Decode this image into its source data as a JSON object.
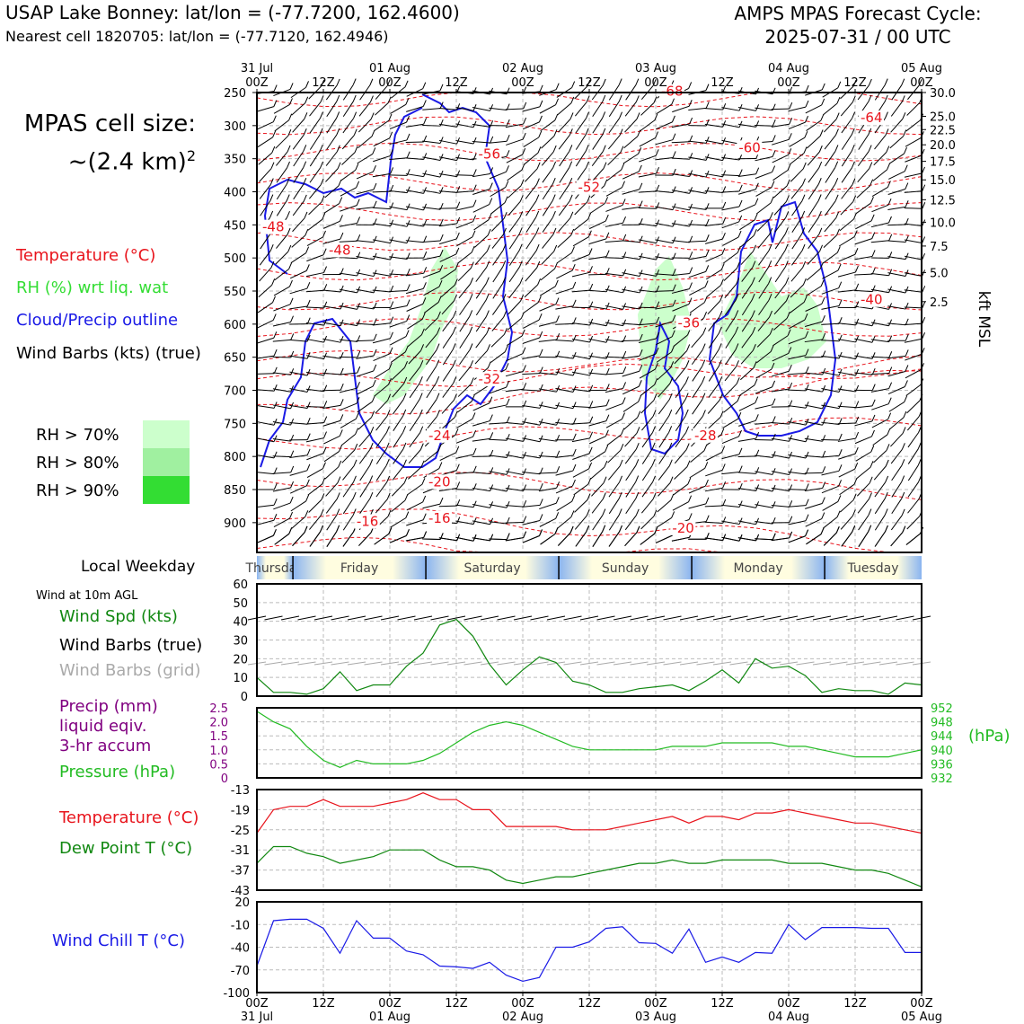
{
  "header": {
    "title_left": "USAP Lake Bonney: lat/lon = (-77.7200, 162.4600)",
    "subtitle_left": "Nearest cell 1820705: lat/lon = (-77.7120, 162.4946)",
    "title_right_line1": "AMPS MPAS Forecast Cycle:",
    "title_right_line2": "2025-07-31 / 00 UTC",
    "cell_size_line1": "MPAS cell size:",
    "cell_size_line2": "~(2.4 km)",
    "cell_size_sup": "2"
  },
  "legend_upper": {
    "temperature": "Temperature (°C)",
    "rh": "RH (%) wrt liq. wat",
    "cloud": "Cloud/Precip outline",
    "barbs": "Wind Barbs (kts) (true)",
    "rh70": "RH > 70%",
    "rh80": "RH > 80%",
    "rh90": "RH > 90%"
  },
  "legend_lower": {
    "weekday_label": "Local Weekday",
    "wind_note": "Wind at 10m AGL",
    "wind_spd": "Wind Spd (kts)",
    "barbs_true": "Wind Barbs (true)",
    "barbs_grid": "Wind Barbs (grid)",
    "precip1": "Precip (mm)",
    "precip2": "liquid eqiv.",
    "precip3": "3-hr accum",
    "pressure": "Pressure (hPa)",
    "hpa_unit": "(hPa)",
    "temp": "Temperature (°C)",
    "dew": "Dew Point T (°C)",
    "chill": "Wind Chill T (°C)"
  },
  "colors": {
    "temperature": "#e8141c",
    "rh": "#33dd33",
    "cloud": "#1a1ae6",
    "pressure": "#22bb22",
    "dew": "#118811",
    "precip": "#800080",
    "chill": "#1a1ae6",
    "grid_barbs": "#aaaaaa",
    "rh70": "#ccffcc",
    "rh80": "#a0f0a0",
    "rh90": "#33dd33"
  },
  "chart_data": {
    "type": "line",
    "time_ticks": [
      {
        "hour": 0,
        "top": "31 Jul",
        "bot": "00Z"
      },
      {
        "hour": 12,
        "top": "",
        "bot": "12Z"
      },
      {
        "hour": 24,
        "top": "01 Aug",
        "bot": "00Z"
      },
      {
        "hour": 36,
        "top": "",
        "bot": "12Z"
      },
      {
        "hour": 48,
        "top": "02 Aug",
        "bot": "00Z"
      },
      {
        "hour": 60,
        "top": "",
        "bot": "12Z"
      },
      {
        "hour": 72,
        "top": "03 Aug",
        "bot": "00Z"
      },
      {
        "hour": 84,
        "top": "",
        "bot": "12Z"
      },
      {
        "hour": 96,
        "top": "04 Aug",
        "bot": "00Z"
      },
      {
        "hour": 108,
        "top": "",
        "bot": "12Z"
      },
      {
        "hour": 120,
        "top": "05 Aug",
        "bot": "00Z"
      }
    ],
    "hours_range": [
      0,
      120
    ],
    "weekdays": [
      {
        "name": "Thursday",
        "start": 0,
        "end": 6.5
      },
      {
        "name": "Friday",
        "start": 6.5,
        "end": 30.5
      },
      {
        "name": "Saturday",
        "start": 30.5,
        "end": 54.5
      },
      {
        "name": "Sunday",
        "start": 54.5,
        "end": 78.5
      },
      {
        "name": "Monday",
        "start": 78.5,
        "end": 102.5
      },
      {
        "name": "Tuesday",
        "start": 102.5,
        "end": 120
      }
    ],
    "upper_panel": {
      "pressure_ticks": [
        250,
        300,
        350,
        400,
        450,
        500,
        550,
        600,
        650,
        700,
        750,
        800,
        850,
        900
      ],
      "pressure_range": [
        250,
        945
      ],
      "height_ticks": [
        {
          "label": "30.0",
          "p": 250
        },
        {
          "label": "25.0",
          "p": 286
        },
        {
          "label": "22.5",
          "p": 306
        },
        {
          "label": "20.0",
          "p": 329
        },
        {
          "label": "17.5",
          "p": 354
        },
        {
          "label": "15.0",
          "p": 382
        },
        {
          "label": "12.5",
          "p": 412
        },
        {
          "label": "10.0",
          "p": 446
        },
        {
          "label": "7.5",
          "p": 482
        },
        {
          "label": "5.0",
          "p": 522
        },
        {
          "label": "2.5",
          "p": 566
        }
      ],
      "height_unit": "kft MSL",
      "temp_labels": [
        {
          "t": "-68",
          "h": 72,
          "p": 255
        },
        {
          "t": "-64",
          "h": 108,
          "p": 295
        },
        {
          "t": "-60",
          "h": 86,
          "p": 340
        },
        {
          "t": "-56",
          "h": 39,
          "p": 350
        },
        {
          "t": "-52",
          "h": 57,
          "p": 400
        },
        {
          "t": "-48",
          "h": 12,
          "p": 495
        },
        {
          "t": "-48",
          "h": 0,
          "p": 460
        },
        {
          "t": "-40",
          "h": 108,
          "p": 570
        },
        {
          "t": "-36",
          "h": 75,
          "p": 605
        },
        {
          "t": "-32",
          "h": 39,
          "p": 690
        },
        {
          "t": "-28",
          "h": 78,
          "p": 775
        },
        {
          "t": "-24",
          "h": 30,
          "p": 775
        },
        {
          "t": "-20",
          "h": 30,
          "p": 845
        },
        {
          "t": "-20",
          "h": 74,
          "p": 915
        },
        {
          "t": "-16",
          "h": 17,
          "p": 905
        },
        {
          "t": "-16",
          "h": 30,
          "p": 900
        }
      ]
    },
    "wind_panel": {
      "ylim": [
        0,
        60
      ],
      "yticks": [
        0,
        10,
        20,
        30,
        40,
        50,
        60
      ],
      "x": [
        0,
        3,
        6,
        9,
        12,
        15,
        18,
        21,
        24,
        27,
        30,
        33,
        36,
        39,
        42,
        45,
        48,
        51,
        54,
        57,
        60,
        63,
        66,
        69,
        72,
        75,
        78,
        81,
        84,
        87,
        90,
        93,
        96,
        99,
        102,
        105,
        108,
        111,
        114,
        117,
        120
      ],
      "wind_speed": [
        10,
        2,
        2,
        1,
        4,
        13,
        3,
        6,
        6,
        16,
        23,
        38,
        41,
        32,
        17,
        6,
        14,
        21,
        18,
        8,
        6,
        2,
        2,
        4,
        5,
        6,
        3,
        8,
        14,
        7,
        20,
        15,
        16,
        11,
        2,
        4,
        3,
        3,
        1,
        7,
        6
      ]
    },
    "pressure_panel": {
      "precip_ylim": [
        0,
        2.5
      ],
      "precip_ticks": [
        "0",
        "0.5",
        "1.0",
        "1.5",
        "2.0",
        "2.5"
      ],
      "pressure_ylim": [
        932,
        952
      ],
      "pressure_ticks": [
        932,
        936,
        940,
        944,
        948,
        952
      ],
      "pressure": [
        951,
        948,
        946,
        941,
        937,
        935,
        937,
        936,
        936,
        936,
        937,
        939,
        942,
        945,
        947,
        948,
        947,
        945,
        943,
        941,
        940,
        940,
        940,
        940,
        940,
        941,
        941,
        941,
        942,
        942,
        942,
        942,
        941,
        941,
        940,
        939,
        938,
        938,
        938,
        939,
        940
      ],
      "precip": []
    },
    "temp_panel": {
      "ylim": [
        -43,
        -13
      ],
      "yticks": [
        -43,
        -37,
        -31,
        -25,
        -19,
        -13
      ],
      "temperature": [
        -26,
        -19,
        -18,
        -18,
        -16,
        -18,
        -18,
        -18,
        -17,
        -16,
        -14,
        -16,
        -16,
        -19,
        -19,
        -24,
        -24,
        -24,
        -24,
        -25,
        -25,
        -25,
        -24,
        -23,
        -22,
        -21,
        -23,
        -21,
        -21,
        -22,
        -20,
        -20,
        -19,
        -20,
        -21,
        -22,
        -23,
        -23,
        -24,
        -25,
        -26
      ],
      "dewpoint": [
        -35,
        -30,
        -30,
        -32,
        -33,
        -35,
        -34,
        -33,
        -31,
        -31,
        -31,
        -34,
        -36,
        -36,
        -37,
        -40,
        -41,
        -40,
        -39,
        -39,
        -38,
        -37,
        -36,
        -35,
        -35,
        -34,
        -35,
        -35,
        -34,
        -34,
        -34,
        -34,
        -35,
        -35,
        -35,
        -36,
        -37,
        -37,
        -38,
        -40,
        -42
      ]
    },
    "chill_panel": {
      "ylim": [
        -100,
        20
      ],
      "yticks": [
        -100,
        -70,
        -40,
        -10,
        20
      ],
      "yticklabels": [
        "-100",
        "-70",
        "-40",
        "-10",
        "20"
      ],
      "wind_chill": [
        -65,
        -5,
        -3,
        -3,
        -15,
        -48,
        -5,
        -28,
        -28,
        -45,
        -50,
        -65,
        -66,
        -68,
        -60,
        -77,
        -85,
        -80,
        -40,
        -40,
        -33,
        -15,
        -13,
        -34,
        -35,
        -48,
        -16,
        -60,
        -53,
        -60,
        -47,
        -48,
        -10,
        -30,
        -14,
        -14,
        -14,
        -15,
        -15,
        -47,
        -47
      ]
    }
  }
}
